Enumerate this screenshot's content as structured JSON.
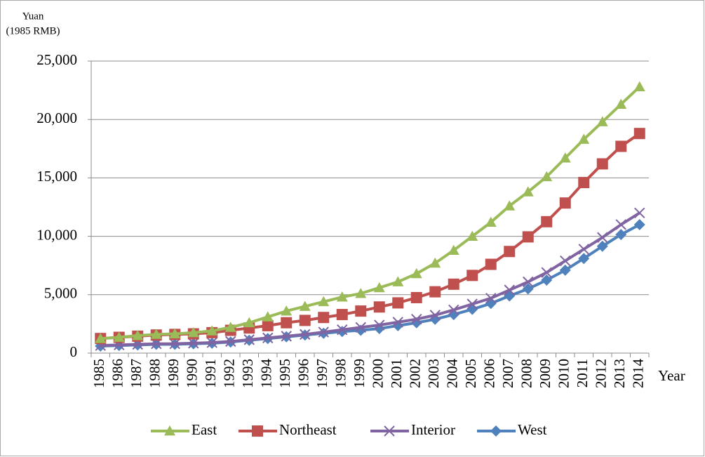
{
  "chart_data": {
    "type": "line",
    "y_label_line1": "Yuan",
    "y_label_line2": "(1985 RMB)",
    "x_label": "Year",
    "categories": [
      "1985",
      "1986",
      "1987",
      "1988",
      "1989",
      "1990",
      "1991",
      "1992",
      "1993",
      "1994",
      "1995",
      "1996",
      "1997",
      "1998",
      "1999",
      "2000",
      "2001",
      "2002",
      "2003",
      "2004",
      "2005",
      "2006",
      "2007",
      "2008",
      "2009",
      "2010",
      "2011",
      "2012",
      "2013",
      "2014"
    ],
    "series": [
      {
        "name": "East",
        "color": "#9bbb59",
        "marker": "triangle",
        "values": [
          1250,
          1350,
          1500,
          1600,
          1650,
          1750,
          1900,
          2200,
          2600,
          3100,
          3600,
          4000,
          4400,
          4800,
          5100,
          5600,
          6100,
          6800,
          7700,
          8800,
          10000,
          11200,
          12600,
          13800,
          15100,
          16700,
          18300,
          19800,
          21300,
          22800
        ]
      },
      {
        "name": "Northeast",
        "color": "#c0504d",
        "marker": "square",
        "values": [
          1250,
          1350,
          1450,
          1550,
          1600,
          1650,
          1750,
          1950,
          2150,
          2350,
          2600,
          2800,
          3050,
          3300,
          3600,
          3950,
          4300,
          4750,
          5250,
          5900,
          6650,
          7600,
          8700,
          9950,
          11250,
          12850,
          14600,
          16200,
          17700,
          18800
        ]
      },
      {
        "name": "Interior",
        "color": "#8064a2",
        "marker": "cross",
        "values": [
          650,
          700,
          750,
          800,
          800,
          850,
          900,
          1000,
          1150,
          1300,
          1450,
          1600,
          1800,
          2000,
          2200,
          2400,
          2650,
          2900,
          3250,
          3700,
          4200,
          4700,
          5400,
          6100,
          6900,
          7900,
          8900,
          9900,
          11000,
          12000
        ]
      },
      {
        "name": "West",
        "color": "#4f81bd",
        "marker": "diamond",
        "values": [
          600,
          650,
          700,
          750,
          750,
          800,
          850,
          950,
          1100,
          1250,
          1400,
          1550,
          1700,
          1850,
          1950,
          2100,
          2350,
          2600,
          2900,
          3300,
          3750,
          4250,
          4900,
          5500,
          6250,
          7100,
          8100,
          9150,
          10150,
          11000
        ]
      }
    ],
    "ylim": [
      0,
      25000
    ],
    "yticks": [
      0,
      {
        "value": 5000,
        "label": "5,000"
      },
      {
        "value": 10000,
        "label": "10,000"
      },
      {
        "value": 15000,
        "label": "15,000"
      },
      {
        "value": 20000,
        "label": "20,000"
      },
      {
        "value": 25000,
        "label": "25,000"
      }
    ],
    "grid": true,
    "legend": "bottom"
  }
}
